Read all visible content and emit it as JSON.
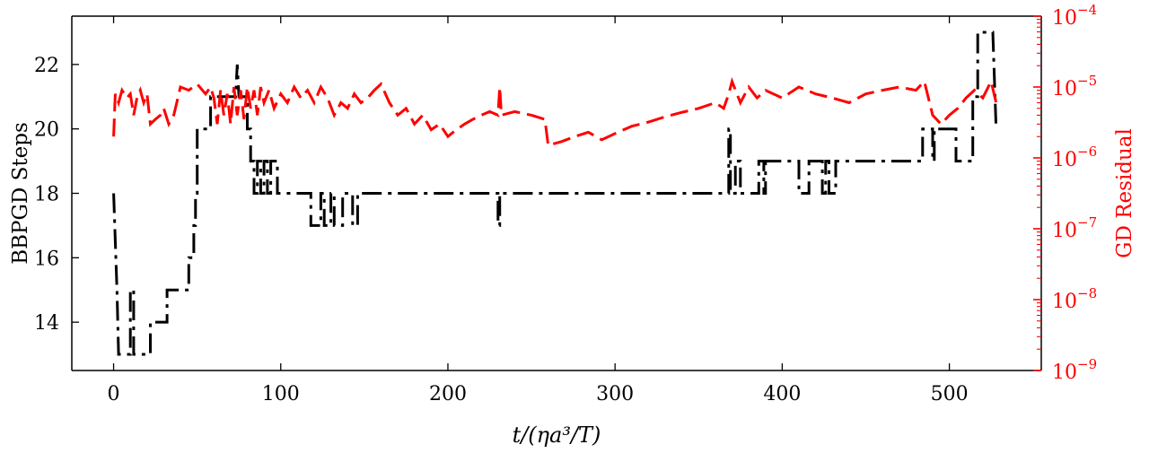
{
  "chart_data": {
    "type": "line",
    "xlabel": "t/(ηa³/T)",
    "ylabel": "BBPGD Steps",
    "ylabel_right": "GD Residual",
    "xlim": [
      -25,
      555
    ],
    "ylim": [
      12.5,
      23.5
    ],
    "ylim_right": [
      1e-09,
      0.0001
    ],
    "right_axis_scale": "log",
    "x_ticks": [
      0,
      100,
      200,
      300,
      400,
      500
    ],
    "y_ticks": [
      14,
      16,
      18,
      20,
      22
    ],
    "y_ticks_right": [
      {
        "value": 1e-09,
        "base": "10",
        "exp": "−9"
      },
      {
        "value": 1e-08,
        "base": "10",
        "exp": "−8"
      },
      {
        "value": 1e-07,
        "base": "10",
        "exp": "−7"
      },
      {
        "value": 1e-06,
        "base": "10",
        "exp": "−6"
      },
      {
        "value": 1e-05,
        "base": "10",
        "exp": "−5"
      },
      {
        "value": 0.0001,
        "base": "10",
        "exp": "−4"
      }
    ],
    "grid": false,
    "colors": {
      "steps": "#000000",
      "residual": "#ff0000",
      "axis_right": "#ff0000"
    },
    "series": [
      {
        "axis": "left",
        "style": "dashdot",
        "color": "#000000",
        "points": [
          [
            0,
            18
          ],
          [
            2,
            15
          ],
          [
            3,
            13
          ],
          [
            10,
            13
          ],
          [
            10,
            15
          ],
          [
            12,
            15
          ],
          [
            12,
            13
          ],
          [
            22,
            13
          ],
          [
            22,
            14
          ],
          [
            32,
            14
          ],
          [
            32,
            15
          ],
          [
            45,
            15
          ],
          [
            45,
            16
          ],
          [
            48,
            16
          ],
          [
            48,
            17
          ],
          [
            49,
            17
          ],
          [
            49,
            18
          ],
          [
            50,
            18
          ],
          [
            50,
            20
          ],
          [
            58,
            20
          ],
          [
            58,
            21
          ],
          [
            73,
            21
          ],
          [
            74,
            22
          ],
          [
            75,
            21
          ],
          [
            80,
            21
          ],
          [
            80,
            20
          ],
          [
            82,
            20
          ],
          [
            82,
            19
          ],
          [
            84,
            19
          ],
          [
            84,
            18
          ],
          [
            86,
            18
          ],
          [
            86,
            19
          ],
          [
            88,
            19
          ],
          [
            88,
            18
          ],
          [
            90,
            18
          ],
          [
            90,
            19
          ],
          [
            92,
            19
          ],
          [
            92,
            18
          ],
          [
            94,
            18
          ],
          [
            94,
            19
          ],
          [
            98,
            19
          ],
          [
            98,
            18
          ],
          [
            118,
            18
          ],
          [
            118,
            17
          ],
          [
            124,
            17
          ],
          [
            124,
            18
          ],
          [
            126,
            18
          ],
          [
            126,
            17
          ],
          [
            130,
            17
          ],
          [
            130,
            18
          ],
          [
            132,
            18
          ],
          [
            132,
            17
          ],
          [
            137,
            17
          ],
          [
            137,
            18
          ],
          [
            143,
            18
          ],
          [
            143,
            17
          ],
          [
            146,
            17
          ],
          [
            146,
            18
          ],
          [
            230,
            18
          ],
          [
            230,
            17
          ],
          [
            231,
            17
          ],
          [
            231,
            18
          ],
          [
            368,
            18
          ],
          [
            368,
            20
          ],
          [
            369,
            20
          ],
          [
            369,
            18
          ],
          [
            372,
            18
          ],
          [
            372,
            19
          ],
          [
            375,
            19
          ],
          [
            375,
            18
          ],
          [
            386,
            18
          ],
          [
            386,
            19
          ],
          [
            389,
            19
          ],
          [
            389,
            18
          ],
          [
            390,
            18
          ],
          [
            390,
            19
          ],
          [
            410,
            19
          ],
          [
            410,
            18
          ],
          [
            416,
            18
          ],
          [
            416,
            19
          ],
          [
            424,
            19
          ],
          [
            424,
            18
          ],
          [
            426,
            18
          ],
          [
            426,
            19
          ],
          [
            428,
            19
          ],
          [
            428,
            18
          ],
          [
            432,
            18
          ],
          [
            432,
            19
          ],
          [
            484,
            19
          ],
          [
            484,
            20
          ],
          [
            490,
            20
          ],
          [
            490,
            19
          ],
          [
            491,
            19
          ],
          [
            491,
            20
          ],
          [
            504,
            20
          ],
          [
            504,
            19
          ],
          [
            514,
            19
          ],
          [
            514,
            21
          ],
          [
            517,
            21
          ],
          [
            517,
            23
          ],
          [
            526,
            23
          ],
          [
            528,
            20
          ]
        ]
      },
      {
        "axis": "right",
        "style": "dashed",
        "color": "#ff0000",
        "points": [
          [
            0,
            2e-06
          ],
          [
            1,
            8e-06
          ],
          [
            3,
            6e-06
          ],
          [
            5,
            9e-06
          ],
          [
            8,
            7e-06
          ],
          [
            10,
            8e-06
          ],
          [
            12,
            4e-06
          ],
          [
            14,
            7e-06
          ],
          [
            16,
            9e-06
          ],
          [
            18,
            6e-06
          ],
          [
            20,
            8e-06
          ],
          [
            22,
            3e-06
          ],
          [
            25,
            3.5e-06
          ],
          [
            28,
            4e-06
          ],
          [
            30,
            5e-06
          ],
          [
            33,
            3e-06
          ],
          [
            36,
            4e-06
          ],
          [
            40,
            1e-05
          ],
          [
            45,
            9e-06
          ],
          [
            50,
            1.1e-05
          ],
          [
            55,
            8e-06
          ],
          [
            58,
            1e-05
          ],
          [
            60,
            7e-06
          ],
          [
            62,
            3e-06
          ],
          [
            64,
            9e-06
          ],
          [
            66,
            4e-06
          ],
          [
            68,
            8e-06
          ],
          [
            70,
            3e-06
          ],
          [
            72,
            1e-05
          ],
          [
            74,
            4e-06
          ],
          [
            76,
            9e-06
          ],
          [
            78,
            3.5e-06
          ],
          [
            80,
            1e-05
          ],
          [
            82,
            5e-06
          ],
          [
            84,
            9e-06
          ],
          [
            86,
            4e-06
          ],
          [
            88,
            1e-05
          ],
          [
            90,
            6e-06
          ],
          [
            93,
            9e-06
          ],
          [
            96,
            5e-06
          ],
          [
            100,
            8e-06
          ],
          [
            104,
            6e-06
          ],
          [
            108,
            1e-05
          ],
          [
            112,
            7e-06
          ],
          [
            116,
            9e-06
          ],
          [
            120,
            6e-06
          ],
          [
            124,
            1e-05
          ],
          [
            128,
            7e-06
          ],
          [
            132,
            4e-06
          ],
          [
            136,
            6e-06
          ],
          [
            140,
            5e-06
          ],
          [
            144,
            8e-06
          ],
          [
            148,
            6e-06
          ],
          [
            152,
            7e-06
          ],
          [
            156,
            9e-06
          ],
          [
            160,
            1.1e-05
          ],
          [
            165,
            6e-06
          ],
          [
            170,
            4e-06
          ],
          [
            175,
            5e-06
          ],
          [
            180,
            3e-06
          ],
          [
            185,
            4e-06
          ],
          [
            190,
            2.5e-06
          ],
          [
            195,
            3e-06
          ],
          [
            200,
            2e-06
          ],
          [
            205,
            2.5e-06
          ],
          [
            210,
            3e-06
          ],
          [
            215,
            3.5e-06
          ],
          [
            220,
            4e-06
          ],
          [
            225,
            4.5e-06
          ],
          [
            230,
            4e-06
          ],
          [
            231,
            1e-05
          ],
          [
            232,
            4e-06
          ],
          [
            240,
            4.5e-06
          ],
          [
            250,
            4e-06
          ],
          [
            258,
            3.5e-06
          ],
          [
            260,
            1.5e-06
          ],
          [
            268,
            1.7e-06
          ],
          [
            276,
            2e-06
          ],
          [
            284,
            2.3e-06
          ],
          [
            292,
            1.8e-06
          ],
          [
            300,
            2.2e-06
          ],
          [
            310,
            2.8e-06
          ],
          [
            320,
            3.2e-06
          ],
          [
            330,
            3.8e-06
          ],
          [
            340,
            4.4e-06
          ],
          [
            350,
            5e-06
          ],
          [
            360,
            6e-06
          ],
          [
            365,
            5e-06
          ],
          [
            368,
            8e-06
          ],
          [
            370,
            1.2e-05
          ],
          [
            375,
            6e-06
          ],
          [
            380,
            1e-05
          ],
          [
            385,
            7e-06
          ],
          [
            390,
            9e-06
          ],
          [
            400,
            7e-06
          ],
          [
            410,
            1e-05
          ],
          [
            420,
            8e-06
          ],
          [
            430,
            7e-06
          ],
          [
            440,
            6e-06
          ],
          [
            450,
            8e-06
          ],
          [
            460,
            9e-06
          ],
          [
            470,
            1e-05
          ],
          [
            480,
            9e-06
          ],
          [
            485,
            1.2e-05
          ],
          [
            490,
            4e-06
          ],
          [
            495,
            3e-06
          ],
          [
            500,
            4e-06
          ],
          [
            505,
            5e-06
          ],
          [
            510,
            7e-06
          ],
          [
            515,
            9e-06
          ],
          [
            520,
            7e-06
          ],
          [
            525,
            1.2e-05
          ],
          [
            528,
            6e-06
          ]
        ]
      }
    ]
  }
}
